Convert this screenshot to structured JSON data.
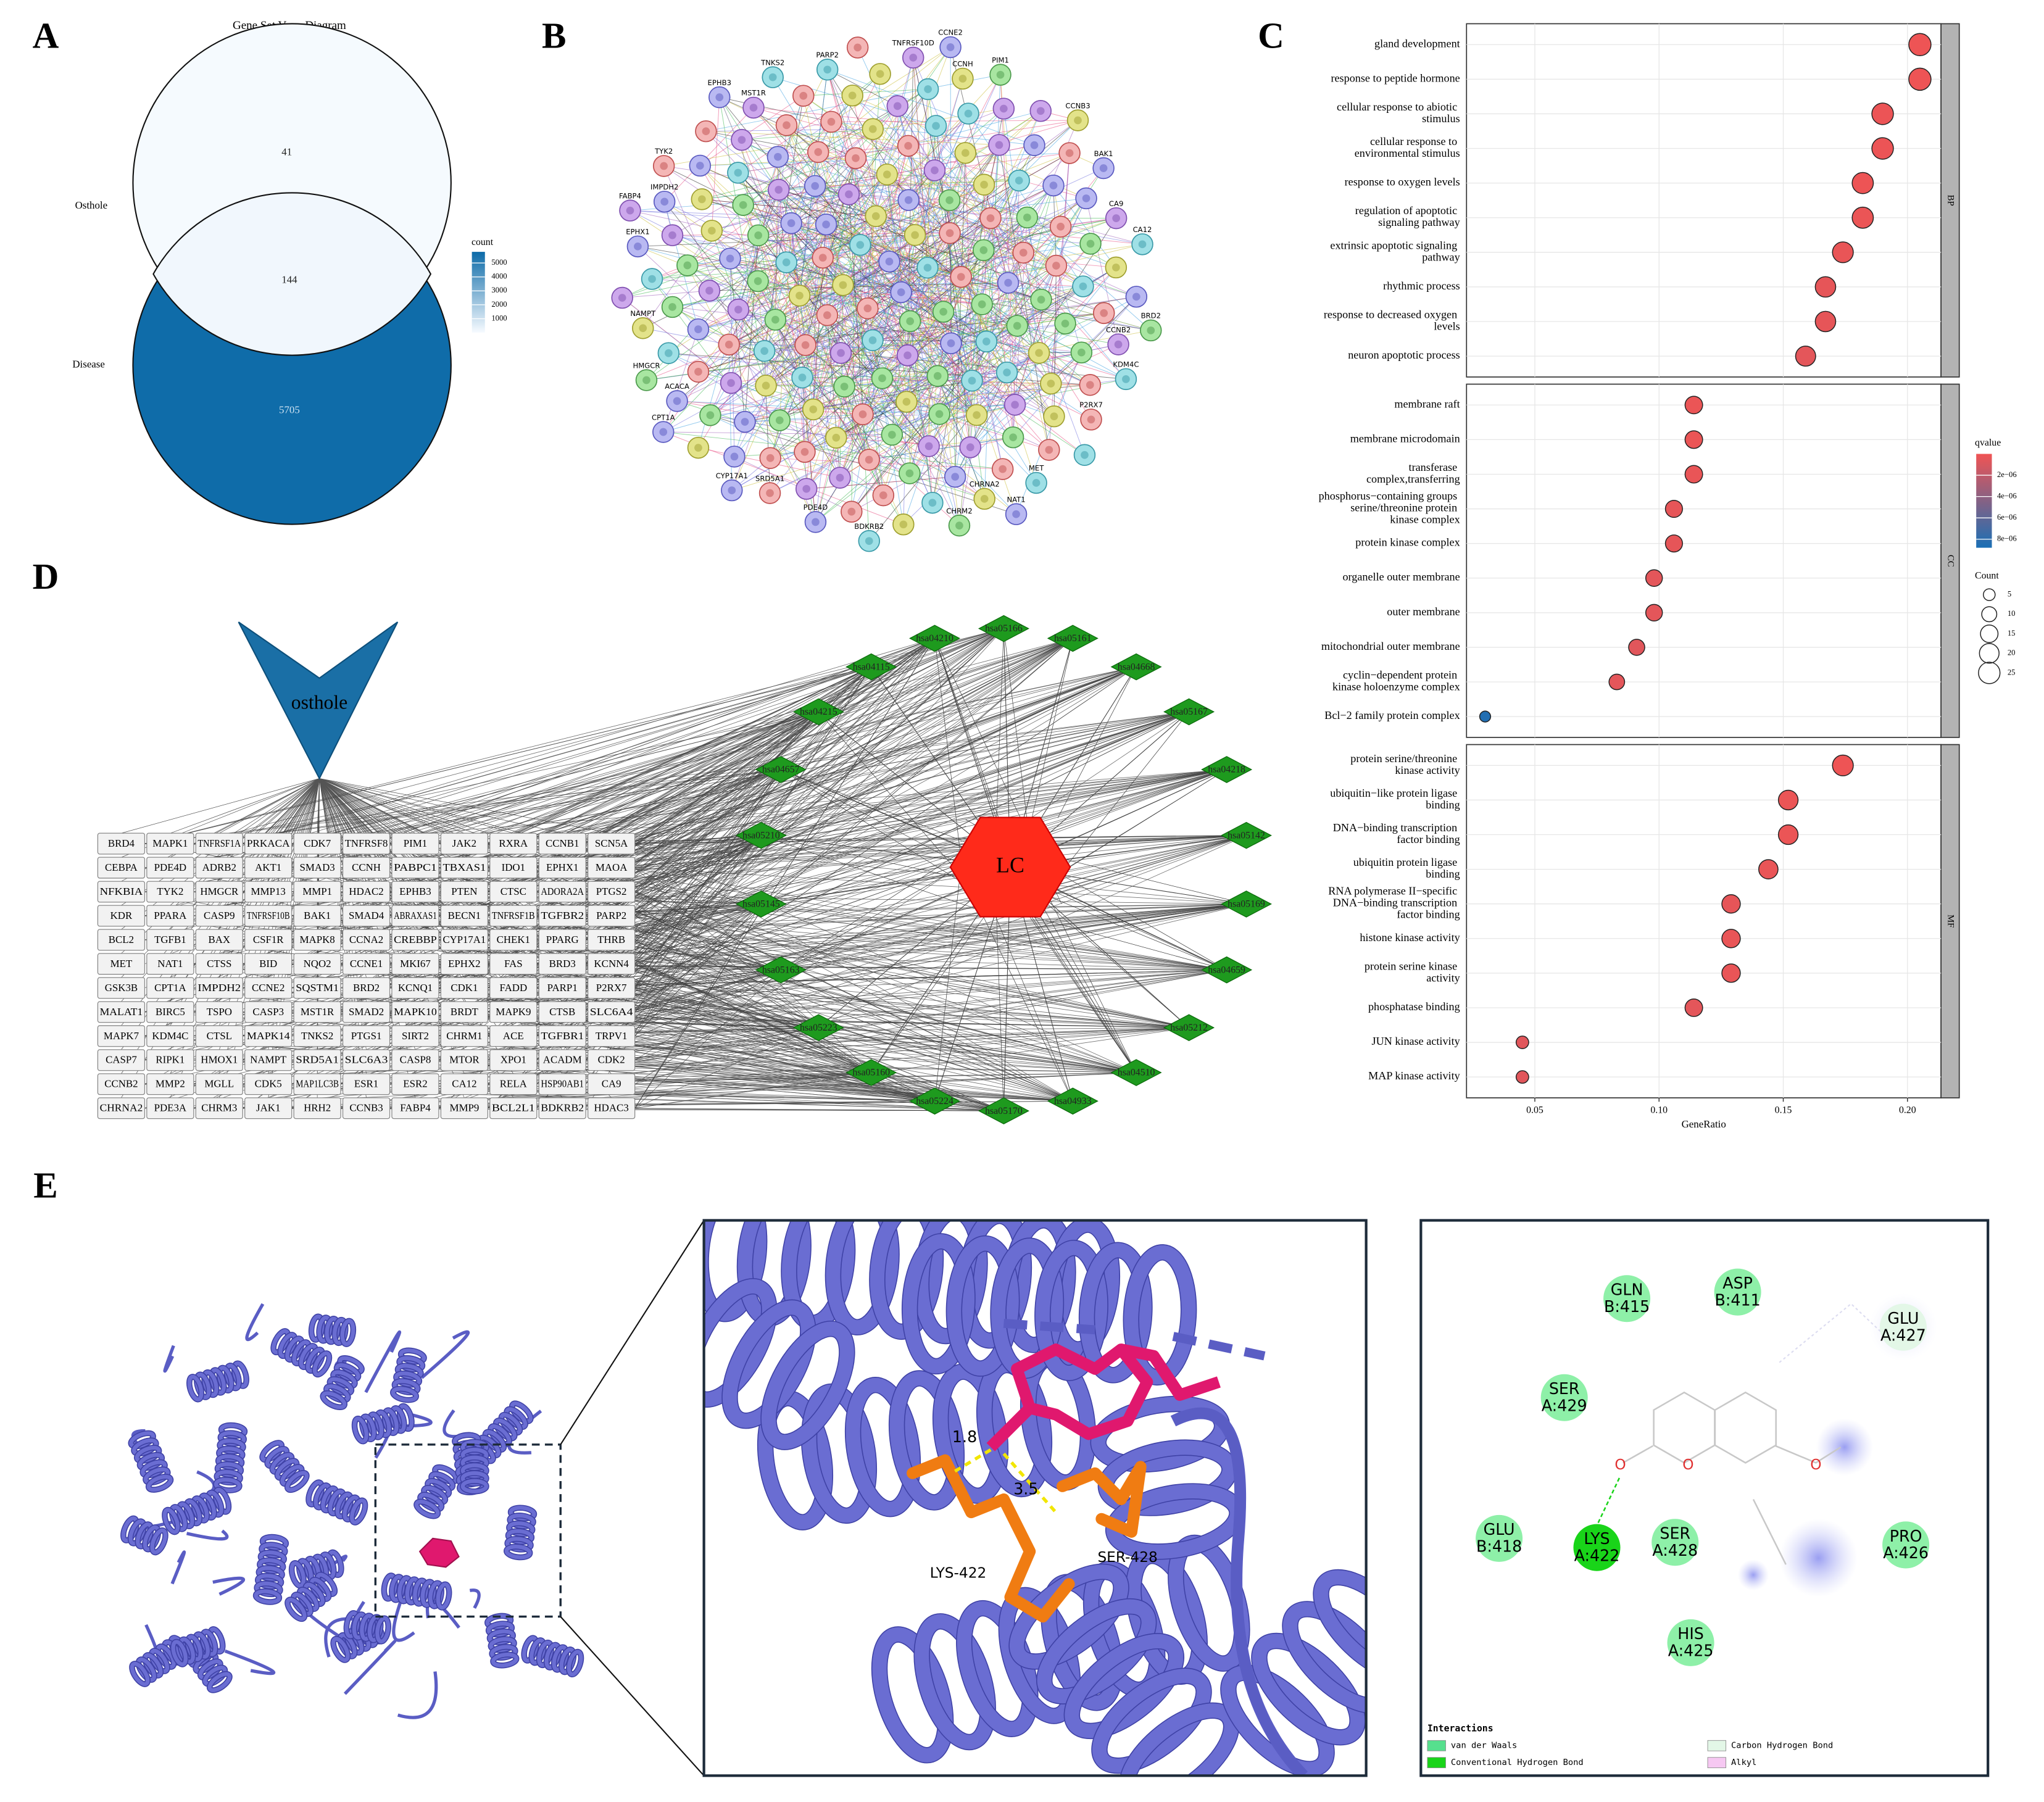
{
  "panel_labels": [
    "A",
    "B",
    "C",
    "D",
    "E"
  ],
  "venn": {
    "title": "Gene Set Venn Diagram",
    "sets": [
      "Osthole",
      "Disease"
    ],
    "counts": [
      41,
      144,
      5705
    ],
    "legend_title": "count",
    "legend_ticks": [
      1000,
      2000,
      3000,
      4000,
      5000
    ],
    "count_lim": [
      0,
      5800
    ],
    "low_color": "#f7fbff",
    "high_color": "#0b6aa8"
  },
  "network_b": {
    "labels": [
      "EPHX1",
      "FABP4",
      "IMPDH2",
      "TYK2",
      "EPHB3",
      "MST1R",
      "TNKS2",
      "PARP2",
      "TNFRSF10D",
      "CCNE2",
      "CCNH",
      "PIM1",
      "CCNB3",
      "BAK1",
      "CA9",
      "CA12",
      "BRD2",
      "CCNB2",
      "KDM4C",
      "P2RX7",
      "MET",
      "NAT1",
      "CHRNA2",
      "CHRM2",
      "BDKRB2",
      "PDE4D",
      "SRD5A1",
      "CYP17A1",
      "CPT1A",
      "ACACA",
      "HMGCR",
      "NAMPT"
    ]
  },
  "chart_data": {
    "type": "dot",
    "xlabel": "GeneRatio",
    "xlim": [
      0.0225,
      0.2135
    ],
    "xticks": [
      0.05,
      {
        "value": 0.1,
        "label": "0.10"
      },
      0.15,
      {
        "value": 0.2,
        "label": "0.20"
      }
    ],
    "grid": true,
    "facets": [
      {
        "name": "BP",
        "categories": [
          "gland development",
          "response to peptide hormone",
          "cellular response to abiotic stimulus",
          "cellular response to environmental stimulus",
          "response to oxygen levels",
          "regulation of apoptotic signaling pathway",
          "extrinsic apoptotic signaling pathway",
          "rhythmic process",
          "response to decreased oxygen levels",
          "neuron apoptotic process"
        ],
        "values": [
          0.205,
          0.205,
          0.19,
          0.19,
          0.182,
          0.182,
          0.174,
          0.167,
          0.167,
          0.159
        ],
        "sizes": [
          27,
          27,
          25,
          25,
          24,
          24,
          23,
          22,
          22,
          21
        ],
        "qvalues": [
          1e-07,
          1e-07,
          1.5e-07,
          1.5e-07,
          1.2e-07,
          2e-07,
          3e-07,
          4e-07,
          4e-07,
          5e-07
        ]
      },
      {
        "name": "CC",
        "categories": [
          "membrane raft",
          "membrane microdomain",
          "transferase complex,transferring",
          "phosphorus−containing groups serine/threonine protein kinase complex",
          "protein kinase complex",
          "organelle outer membrane",
          "outer membrane",
          "mitochondrial outer membrane",
          "cyclin−dependent protein kinase holoenzyme complex",
          "Bcl−2 family protein complex"
        ],
        "values": [
          0.114,
          0.114,
          0.114,
          0.106,
          0.106,
          0.098,
          0.098,
          0.091,
          0.083,
          0.03
        ],
        "sizes": [
          15,
          15,
          15,
          14,
          14,
          13,
          13,
          12,
          11,
          4
        ],
        "qvalues": [
          2e-07,
          2e-07,
          3e-07,
          4e-07,
          4e-07,
          5e-07,
          5e-07,
          6e-07,
          5e-07,
          8.5e-06
        ]
      },
      {
        "name": "MF",
        "categories": [
          "protein serine/threonine kinase activity",
          "ubiquitin−like protein ligase binding",
          "DNA−binding transcription factor binding",
          "ubiquitin protein ligase binding",
          "RNA polymerase II−specific DNA−binding transcription factor binding",
          "histone kinase activity",
          "protein serine kinase activity",
          "phosphatase binding",
          "JUN kinase activity",
          "MAP kinase activity"
        ],
        "values": [
          0.174,
          0.152,
          0.152,
          0.144,
          0.129,
          0.129,
          0.129,
          0.114,
          0.045,
          0.045
        ],
        "sizes": [
          23,
          20,
          20,
          19,
          17,
          17,
          17,
          15,
          6,
          6
        ],
        "qvalues": [
          1e-07,
          2e-07,
          2e-07,
          3e-07,
          4e-07,
          3e-07,
          3e-07,
          5e-07,
          6e-07,
          6e-07
        ]
      }
    ],
    "color_legend": {
      "title": "qvalue",
      "lim": [
        0,
        8.8e-06
      ],
      "low_color": "#f05454",
      "high_color": "#1a6fb5",
      "ticks": [
        {
          "value": 2e-06,
          "label": "2e−06"
        },
        {
          "value": 4e-06,
          "label": "4e−06"
        },
        {
          "value": 6e-06,
          "label": "6e−06"
        },
        {
          "value": 8e-06,
          "label": "8e−06"
        }
      ]
    },
    "size_legend": {
      "title": "Count",
      "values": [
        5,
        10,
        15,
        20,
        25
      ]
    }
  },
  "network_d": {
    "drug": "osthole",
    "disease": "LC",
    "targets": [
      [
        "BRD4",
        "MAPK1",
        "TNFRSF1A",
        "PRKACA",
        "CDK7",
        "TNFRSF8",
        "PIM1",
        "JAK2",
        "RXRA",
        "CCNB1",
        "SCN5A"
      ],
      [
        "CEBPA",
        "PDE4D",
        "ADRB2",
        "AKT1",
        "SMAD3",
        "CCNH",
        "PABPC1",
        "TBXAS1",
        "IDO1",
        "EPHX1",
        "MAOA"
      ],
      [
        "NFKBIA",
        "TYK2",
        "HMGCR",
        "MMP13",
        "MMP1",
        "HDAC2",
        "EPHB3",
        "PTEN",
        "CTSC",
        "ADORA2A",
        "PTGS2"
      ],
      [
        "KDR",
        "PPARA",
        "CASP9",
        "TNFRSF10B",
        "BAK1",
        "SMAD4",
        "ABRAXAS1",
        "BECN1",
        "TNFRSF1B",
        "TGFBR2",
        "PARP2"
      ],
      [
        "BCL2",
        "TGFB1",
        "BAX",
        "CSF1R",
        "MAPK8",
        "CCNA2",
        "CREBBP",
        "CYP17A1",
        "CHEK1",
        "PPARG",
        "THRB"
      ],
      [
        "MET",
        "NAT1",
        "CTSS",
        "BID",
        "NQO2",
        "CCNE1",
        "MKI67",
        "EPHX2",
        "FAS",
        "BRD3",
        "KCNN4"
      ],
      [
        "GSK3B",
        "CPT1A",
        "IMPDH2",
        "CCNE2",
        "SQSTM1",
        "BRD2",
        "KCNQ1",
        "CDK1",
        "FADD",
        "PARP1",
        "P2RX7"
      ],
      [
        "MALAT1",
        "BIRC5",
        "TSPO",
        "CASP3",
        "MST1R",
        "SMAD2",
        "MAPK10",
        "BRDT",
        "MAPK9",
        "CTSB",
        "SLC6A4"
      ],
      [
        "MAPK7",
        "KDM4C",
        "CTSL",
        "MAPK14",
        "TNKS2",
        "PTGS1",
        "SIRT2",
        "CHRM1",
        "ACE",
        "TGFBR1",
        "TRPV1"
      ],
      [
        "CASP7",
        "RIPK1",
        "HMOX1",
        "NAMPT",
        "SRD5A1",
        "SLC6A3",
        "CASP8",
        "MTOR",
        "XPO1",
        "ACADM",
        "CDK2"
      ],
      [
        "CCNB2",
        "MMP2",
        "MGLL",
        "CDK5",
        "MAP1LC3B",
        "ESR1",
        "ESR2",
        "CA12",
        "RELA",
        "HSP90AB1",
        "CA9"
      ],
      [
        "CHRNA2",
        "PDE3A",
        "CHRM3",
        "JAK1",
        "HRH2",
        "CCNB3",
        "FABP4",
        "MMP9",
        "BCL2L1",
        "BDKRB2",
        "HDAC3"
      ]
    ],
    "pathways": [
      "hsa05166",
      "hsa05161",
      "hsa04668",
      "hsa05167",
      "hsa04218",
      "hsa05142",
      "hsa05169",
      "hsa04659",
      "hsa05212",
      "hsa04510",
      "hsa04933",
      "hsa05170",
      "hsa05224",
      "hsa05160",
      "hsa05223",
      "hsa05163",
      "hsa05145",
      "hsa05210",
      "hsa04657",
      "hsa04215",
      "hsa04115",
      "hsa04210"
    ]
  },
  "docking": {
    "distances": [
      1.8,
      3.5
    ],
    "residues": [
      "LYS-422",
      "SER-428"
    ],
    "atoms": [
      "O",
      "O",
      "O"
    ],
    "interactions": [
      {
        "name": "GLN",
        "chain": "B:415",
        "color": "#8ef0a8"
      },
      {
        "name": "ASP",
        "chain": "B:411",
        "color": "#8ef0a8"
      },
      {
        "name": "GLU",
        "chain": "A:427",
        "color": "#e3f7e7"
      },
      {
        "name": "SER",
        "chain": "A:429",
        "color": "#8ef0a8"
      },
      {
        "name": "GLU",
        "chain": "B:418",
        "color": "#8ef0a8"
      },
      {
        "name": "LYS",
        "chain": "A:422",
        "color": "#19d419"
      },
      {
        "name": "SER",
        "chain": "A:428",
        "color": "#8ef0a8"
      },
      {
        "name": "PRO",
        "chain": "A:426",
        "color": "#8ef0a8"
      },
      {
        "name": "HIS",
        "chain": "A:425",
        "color": "#8ef0a8"
      }
    ],
    "legend_title": "Interactions",
    "legend": [
      {
        "name": "van der Waals",
        "color": "#56e08e"
      },
      {
        "name": "Conventional Hydrogen Bond",
        "color": "#19d419"
      },
      {
        "name": "Carbon Hydrogen Bond",
        "color": "#e3f7e7"
      },
      {
        "name": "Alkyl",
        "color": "#f6c8f2"
      }
    ]
  }
}
